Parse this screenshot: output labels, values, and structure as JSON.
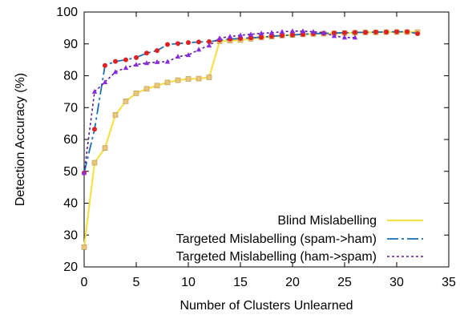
{
  "chart_data": {
    "type": "line",
    "xlabel": "Number of Clusters Unlearned",
    "ylabel": "Detection Accuracy (%)",
    "xlim": [
      0,
      35
    ],
    "ylim": [
      20,
      100
    ],
    "xticks": [
      "0",
      "5",
      "10",
      "15",
      "20",
      "25",
      "30",
      "35"
    ],
    "yticks": [
      "20",
      "30",
      "40",
      "50",
      "60",
      "70",
      "80",
      "90",
      "100"
    ],
    "grid": false,
    "legend": "bottom-right",
    "series": [
      {
        "name": "Blind Mislabelling",
        "color": "#f5e04a",
        "marker": "square",
        "marker_color": "#e8c878",
        "x": [
          0,
          1,
          2,
          3,
          4,
          5,
          6,
          7,
          8,
          9,
          10,
          11,
          12,
          13,
          14,
          15,
          16,
          17,
          18,
          19,
          20,
          21,
          22,
          23,
          24,
          25,
          26,
          27,
          28,
          29,
          30,
          31,
          32
        ],
        "values": [
          26.2,
          52.7,
          57.3,
          67.7,
          72.0,
          74.5,
          75.9,
          76.9,
          77.9,
          78.6,
          79.0,
          79.1,
          79.5,
          90.8,
          91.0,
          91.2,
          91.6,
          92.0,
          92.3,
          92.6,
          92.8,
          93.0,
          93.1,
          93.2,
          93.3,
          93.4,
          93.5,
          93.6,
          93.6,
          93.7,
          93.7,
          93.7,
          93.7
        ]
      },
      {
        "name": "Targeted Mislabelling (spam->ham)",
        "color": "#1a6fb5",
        "marker": "circle",
        "marker_color": "#e02020",
        "x": [
          0,
          1,
          2,
          3,
          4,
          5,
          6,
          7,
          8,
          9,
          10,
          11,
          12,
          13,
          14,
          15,
          16,
          17,
          18,
          19,
          20,
          21,
          22,
          23,
          24,
          25,
          26,
          27,
          28,
          29,
          30,
          31,
          32
        ],
        "values": [
          49.5,
          63.2,
          83.2,
          84.5,
          85.0,
          85.7,
          87.1,
          87.9,
          89.8,
          90.1,
          90.4,
          90.6,
          90.7,
          91.2,
          91.5,
          91.7,
          91.9,
          92.1,
          92.4,
          92.6,
          92.8,
          93.0,
          93.2,
          93.3,
          93.4,
          93.5,
          93.6,
          93.6,
          93.7,
          93.7,
          93.8,
          93.8,
          93.2
        ]
      },
      {
        "name": "Targeted Mislabelling (ham->spam)",
        "color": "#5b1f8f",
        "marker": "triangle",
        "marker_color": "#8a2be2",
        "x": [
          0,
          1,
          2,
          3,
          4,
          5,
          6,
          7,
          8,
          9,
          10,
          11,
          12,
          13,
          14,
          15,
          16,
          17,
          18,
          19,
          20,
          21,
          22,
          23,
          24,
          25,
          26
        ],
        "values": [
          49.5,
          75.0,
          78.0,
          81.2,
          82.5,
          83.5,
          84.0,
          84.3,
          84.4,
          86.0,
          86.5,
          88.2,
          89.5,
          91.8,
          92.3,
          92.7,
          93.0,
          93.3,
          93.5,
          93.8,
          94.0,
          94.0,
          93.8,
          93.5,
          92.5,
          92.0,
          92.0
        ]
      }
    ]
  }
}
